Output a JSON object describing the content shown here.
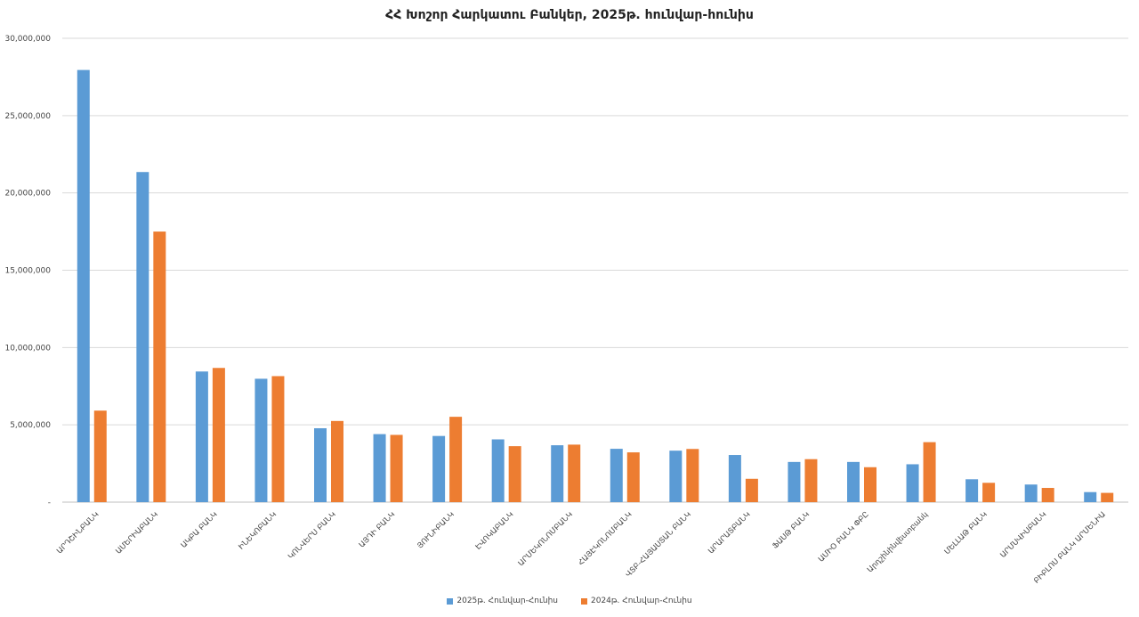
{
  "chart_data": {
    "type": "bar",
    "title": "ՀՀ Խոշոր Հարկատու Բանկեր, 2025թ. հունվար-հունիս",
    "xlabel": "",
    "ylabel": "",
    "ylim": [
      0,
      30000000
    ],
    "yticks": [
      "-",
      "5,000,000",
      "10,000,000",
      "15,000,000",
      "20,000,000",
      "25,000,000",
      "30,000,000"
    ],
    "grid": true,
    "legend_position": "bottom",
    "categories": [
      "ԱՐԴՇԻՆԲԱՆԿ",
      "ԱՄԵՐԻԱԲԱՆԿ",
      "ԱԿԲԱ ԲԱՆԿ",
      "ԻՆԵԿՈԲԱՆԿ",
      "ԿՈՆՎԵՐՍ ԲԱՆԿ",
      "ԱՅԴԻ ԲԱՆԿ",
      "ՅՈՒՆԻԲԱՆԿ",
      "ԷՎՈԿԱԲԱՆԿ",
      "ԱՐՄԵԿՈՆՈՄԲԱՆԿ",
      "ՀԱՅԷԿՈՆՈՄԲԱՆԿ",
      "ՎՏԲ-ՀԱՅԱՍՏԱՆ ԲԱՆԿ",
      "ԱՐԱՐԱՏԲԱՆԿ",
      "ՖԱՍԹ ԲԱՆԿ",
      "ԱՄԻՕ ԲԱՆԿ ՓԲԸ",
      "Արդշինինվեստբանկ",
      "ՄԵԼԼԱԹ ԲԱՆԿ",
      "ԱՐՄՍՎԻՍԲԱՆԿ",
      "ԲԻԲԼՈՍ ԲԱՆԿ ԱՐՄԵՆԻԱ"
    ],
    "series": [
      {
        "name": "2025թ. Հունվար-Հունիս",
        "color": "#5B9BD5",
        "values": [
          27950000,
          21350000,
          8450000,
          7980000,
          4780000,
          4400000,
          4280000,
          4060000,
          3680000,
          3450000,
          3330000,
          3050000,
          2600000,
          2600000,
          2450000,
          1480000,
          1140000,
          650000
        ]
      },
      {
        "name": "2024թ. Հունվար-Հունիս",
        "color": "#ED7D31",
        "values": [
          5920000,
          17500000,
          8680000,
          8150000,
          5250000,
          4350000,
          5520000,
          3620000,
          3720000,
          3220000,
          3440000,
          1510000,
          2780000,
          2260000,
          3880000,
          1250000,
          920000,
          600000
        ]
      }
    ]
  }
}
